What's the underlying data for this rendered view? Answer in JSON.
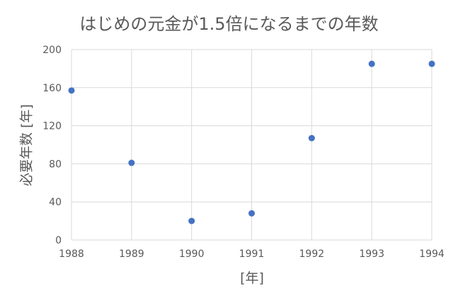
{
  "chart_data": {
    "type": "scatter",
    "title": "はじめの元金が1.5倍になるまでの年数",
    "xlabel": "[年]",
    "ylabel": "必要年数 [年]",
    "xlim": [
      1988,
      1994
    ],
    "ylim": [
      0,
      200
    ],
    "xticks": [
      1988,
      1989,
      1990,
      1991,
      1992,
      1993,
      1994
    ],
    "yticks": [
      0,
      40,
      80,
      120,
      160,
      200
    ],
    "grid": true,
    "x": [
      1988,
      1989,
      1990,
      1991,
      1992,
      1993,
      1994
    ],
    "y": [
      157,
      81,
      20,
      28,
      107,
      185,
      185
    ],
    "marker_color": "#4472C4",
    "grid_color": "#D9D9D9"
  }
}
